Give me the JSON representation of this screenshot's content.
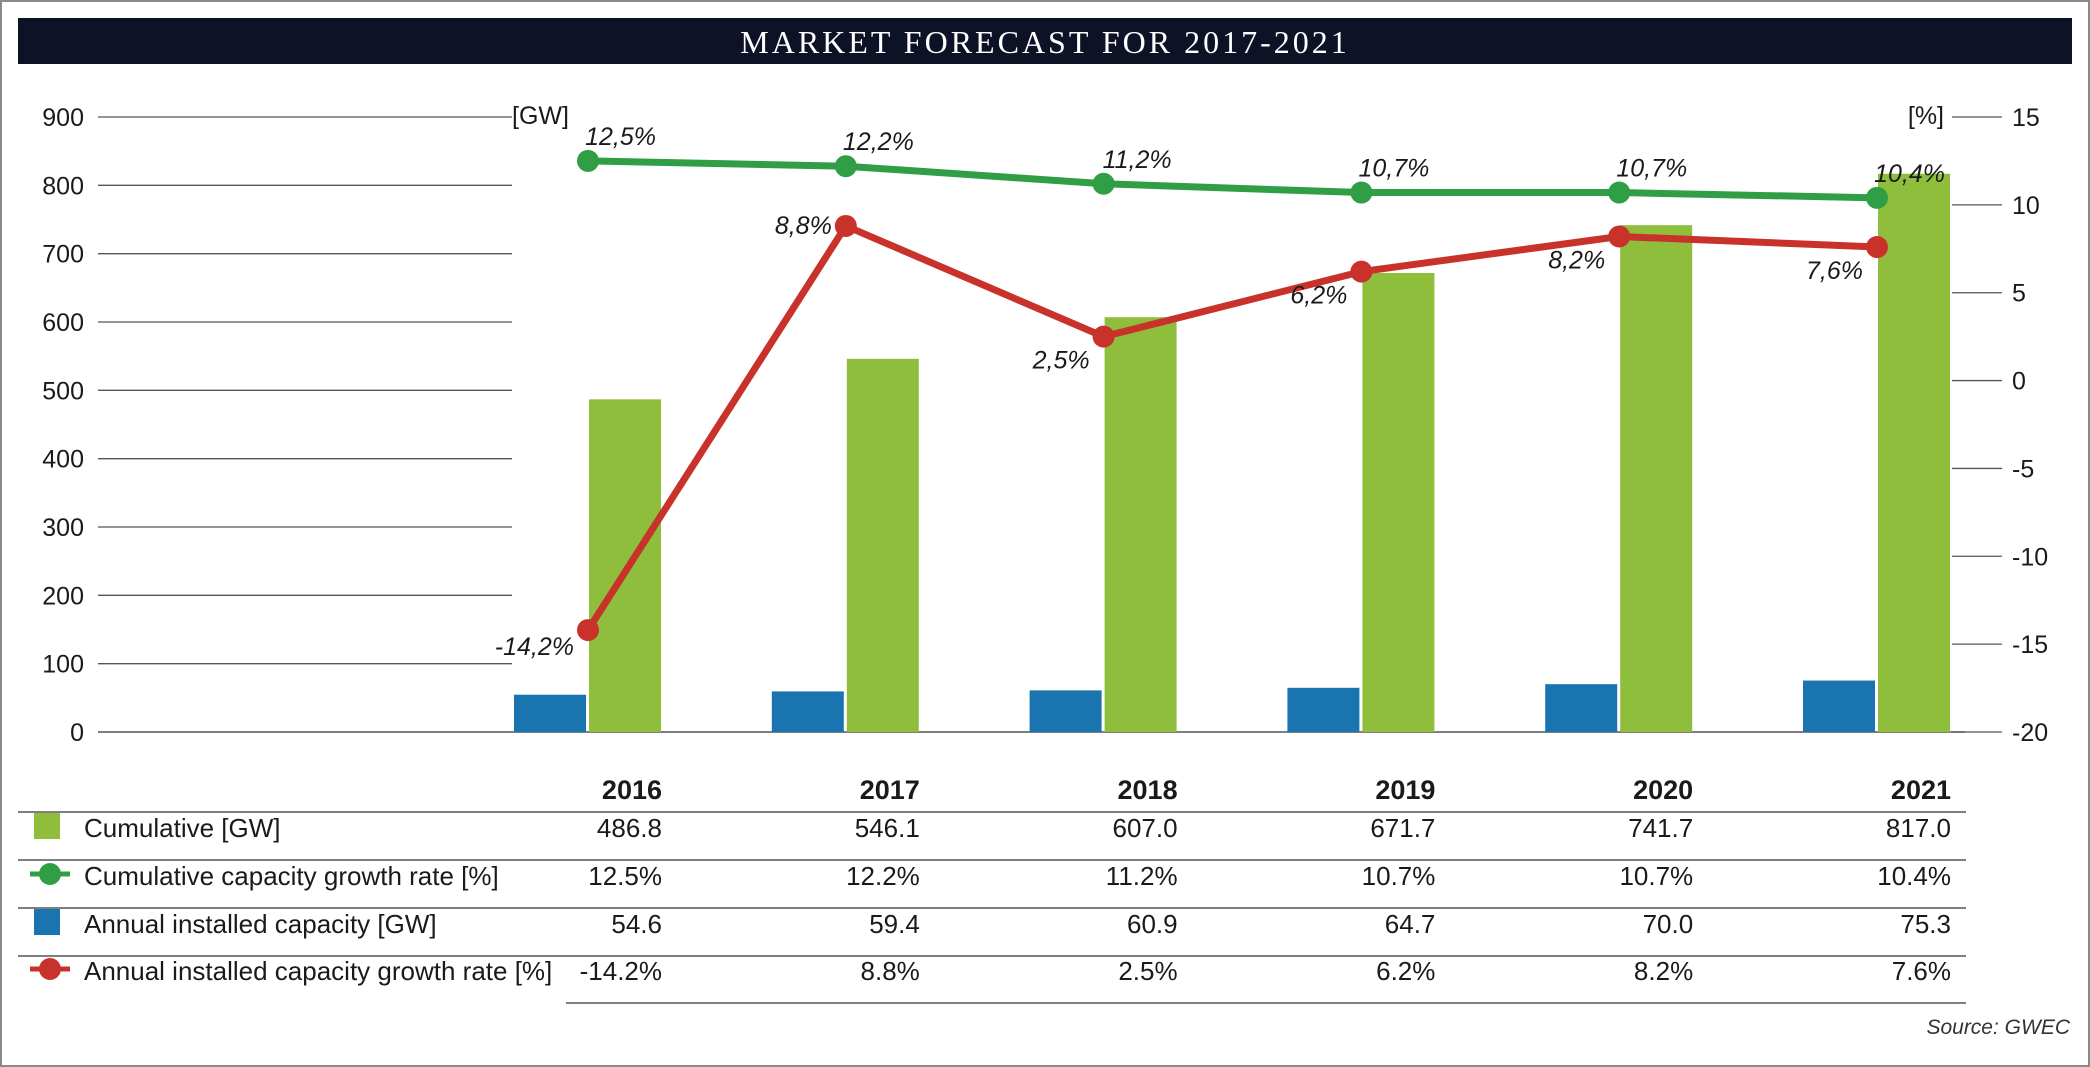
{
  "title": "MARKET FORECAST FOR 2017-2021",
  "source": "Source: GWEC",
  "colors": {
    "title_bg": "#0d1226",
    "cumulative": "#8fbd3c",
    "cumulative_growth": "#2f9e44",
    "annual": "#1a74b0",
    "annual_growth": "#c8322a",
    "grid": "#555555"
  },
  "chart_data": {
    "type": "bar",
    "categories": [
      "2016",
      "2017",
      "2018",
      "2019",
      "2020",
      "2021"
    ],
    "left_axis": {
      "unit": "[GW]",
      "range": [
        0,
        900
      ],
      "ticks": [
        "0",
        "100",
        "200",
        "300",
        "400",
        "500",
        "600",
        "700",
        "800",
        "900"
      ]
    },
    "right_axis": {
      "unit": "[%]",
      "range": [
        -20,
        15
      ],
      "ticks": [
        "-20",
        "-15",
        "-10",
        "-5",
        "0",
        "5",
        "10",
        "15"
      ]
    },
    "series": [
      {
        "name": "Cumulative [GW]",
        "kind": "bar",
        "axis": "left",
        "values": [
          486.8,
          546.1,
          607.0,
          671.7,
          741.7,
          817.0
        ]
      },
      {
        "name": "Annual installed capacity [GW]",
        "kind": "bar",
        "axis": "left",
        "values": [
          54.6,
          59.4,
          60.9,
          64.7,
          70.0,
          75.3
        ]
      },
      {
        "name": "Cumulative capacity growth rate [%]",
        "kind": "line",
        "axis": "right",
        "values": [
          12.5,
          12.2,
          11.2,
          10.7,
          10.7,
          10.4
        ],
        "labels": [
          "12,5%",
          "12,2%",
          "11,2%",
          "10,7%",
          "10,7%",
          "10,4%"
        ]
      },
      {
        "name": "Annual installed capacity growth rate [%]",
        "kind": "line",
        "axis": "right",
        "values": [
          -14.2,
          8.8,
          2.5,
          6.2,
          8.2,
          7.6
        ],
        "labels": [
          "-14,2%",
          "8,8%",
          "2,5%",
          "6,2%",
          "8,2%",
          "7,6%"
        ]
      }
    ],
    "grid": true
  },
  "table": {
    "years": [
      "2016",
      "2017",
      "2018",
      "2019",
      "2020",
      "2021"
    ],
    "rows": [
      {
        "label": "Cumulative [GW]",
        "marker": "square",
        "color_key": "cumulative",
        "cells": [
          "486.8",
          "546.1",
          "607.0",
          "671.7",
          "741.7",
          "817.0"
        ]
      },
      {
        "label": "Cumulative capacity growth rate [%]",
        "marker": "line-dot",
        "color_key": "cumulative_growth",
        "cells": [
          "12.5%",
          "12.2%",
          "11.2%",
          "10.7%",
          "10.7%",
          "10.4%"
        ]
      },
      {
        "label": "Annual installed capacity [GW]",
        "marker": "square",
        "color_key": "annual",
        "cells": [
          "54.6",
          "59.4",
          "60.9",
          "64.7",
          "70.0",
          "75.3"
        ]
      },
      {
        "label": "Annual installed capacity growth rate [%]",
        "marker": "line-dot",
        "color_key": "annual_growth",
        "cells": [
          "-14.2%",
          "8.8%",
          "2.5%",
          "6.2%",
          "8.2%",
          "7.6%"
        ]
      }
    ]
  }
}
